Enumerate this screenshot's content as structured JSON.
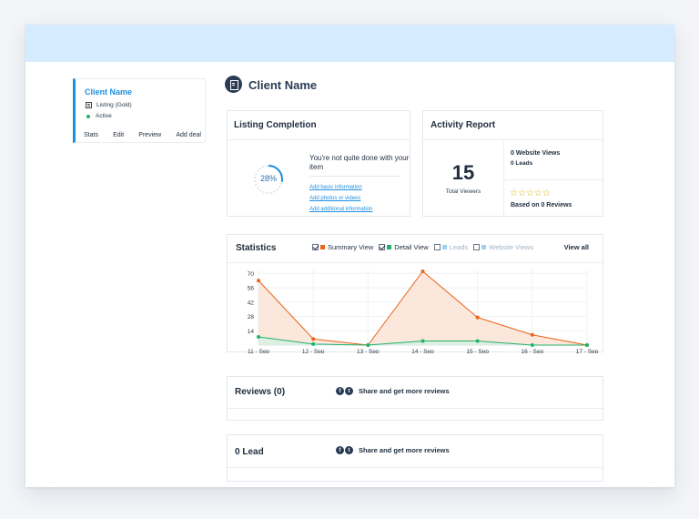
{
  "sidebar_card": {
    "client_name": "Client Name",
    "listing_label": "Listing (Gold)",
    "status": "Active",
    "links": [
      "Stats",
      "Edit",
      "Preview",
      "Add deal"
    ]
  },
  "page": {
    "title": "Client Name"
  },
  "listing_completion": {
    "title": "Listing Completion",
    "percent_label": "28%",
    "progress": 0.28,
    "message": "You're not quite done with your item",
    "links": [
      "Add basic information",
      "Add photos or videos",
      "Add additional information"
    ]
  },
  "activity_report": {
    "title": "Activity Report",
    "total_viewers": "15",
    "total_viewers_label": "Total Viewers",
    "website_views": "0 Website Views",
    "leads": "0 Leads",
    "stars": "☆☆☆☆☆",
    "rating_count": 0,
    "reviews_text": "Based on 0 Reviews"
  },
  "statistics": {
    "title": "Statistics",
    "view_all": "View all",
    "legend": [
      {
        "label": "Summary View",
        "checked": true,
        "color": "#e8651a",
        "active": true
      },
      {
        "label": "Detail View",
        "checked": true,
        "color": "#1fb36b",
        "active": true
      },
      {
        "label": "Leads",
        "checked": false,
        "color": "#9fd0ee",
        "active": false
      },
      {
        "label": "Website Views",
        "checked": false,
        "color": "#9fd0ee",
        "active": false
      }
    ]
  },
  "chart_data": {
    "type": "area",
    "categories": [
      "11 - Sep",
      "12 - Sep",
      "13 - Sep",
      "14 - Sep",
      "15 - Sep",
      "16 - Sep",
      "17 - Sep"
    ],
    "series": [
      {
        "name": "Summary View",
        "values": [
          63,
          6,
          0,
          72,
          27,
          10,
          0
        ],
        "color": "#e8651a",
        "fill": "#fbe3d6"
      },
      {
        "name": "Detail View",
        "values": [
          8,
          1,
          0,
          4,
          4,
          0,
          0
        ],
        "color": "#1fb36b",
        "fill": "#d8f0e4"
      }
    ],
    "yticks": [
      14,
      28,
      42,
      56,
      70
    ],
    "ylim": [
      0,
      72
    ],
    "grid": true
  },
  "reviews": {
    "title": "Reviews (0)",
    "share_text": "Share and get more reviews"
  },
  "leads_card": {
    "title": "0 Lead",
    "share_text": "Share and get more reviews"
  }
}
